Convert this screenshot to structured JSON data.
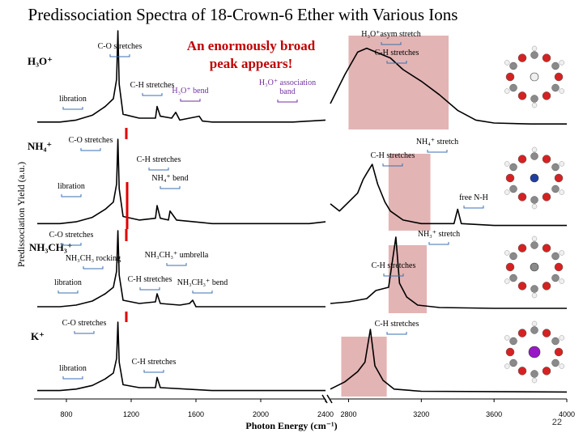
{
  "title": "Predissociation Spectra of 18-Crown-6 Ether with Various Ions",
  "page_number": "22",
  "callout": [
    "An enormously broad",
    "peak appears!"
  ],
  "colors": {
    "trace": "#000000",
    "highlight": "#e3b4b4",
    "bracket_blue": "#3b6fb0",
    "bracket_purple": "#7030a0",
    "break_marker": "#e00000",
    "callout_text": "#c00000",
    "atom_oxygen": "#d42222",
    "atom_carbon": "#8a8a8a",
    "atom_hydrogen": "#f0f0f0",
    "atom_nitrogen": "#1f3f9f",
    "atom_potassium": "#9a17c9"
  },
  "chart_data": {
    "type": "line",
    "xlabel": "Photon Energy (cm⁻¹)",
    "ylabel": "Predissociation Yield (a.u.)",
    "xlim": [
      600,
      4000
    ],
    "axis_break": [
      2400,
      2700
    ],
    "xticks": [
      800,
      1200,
      1600,
      2000,
      2400,
      2800,
      3200,
      3600,
      4000
    ],
    "grid": false,
    "legend": "none",
    "panels": [
      {
        "name": "H3O+",
        "ion_label": "H₃O⁺",
        "highlight_range": [
          2800,
          3350
        ],
        "annotations": [
          {
            "text": "C-O stretches",
            "x": 1120
          },
          {
            "text": "libration",
            "x": 920
          },
          {
            "text": "C-H stretches",
            "x": 1350
          },
          {
            "text": "H₃O⁺ bend",
            "x": 1640
          },
          {
            "text": "H₃O⁺ association band",
            "x": 2300
          },
          {
            "text": "H₃O⁺asym stretch",
            "x": 3030
          },
          {
            "text": "C-H stretches",
            "x": 3030
          }
        ],
        "points": [
          [
            620,
            0.06
          ],
          [
            760,
            0.06
          ],
          [
            860,
            0.08
          ],
          [
            960,
            0.13
          ],
          [
            1040,
            0.22
          ],
          [
            1090,
            0.3
          ],
          [
            1110,
            0.5
          ],
          [
            1118,
            1.0
          ],
          [
            1126,
            0.45
          ],
          [
            1150,
            0.14
          ],
          [
            1250,
            0.1
          ],
          [
            1350,
            0.1
          ],
          [
            1360,
            0.22
          ],
          [
            1380,
            0.12
          ],
          [
            1450,
            0.1
          ],
          [
            1475,
            0.16
          ],
          [
            1500,
            0.08
          ],
          [
            1620,
            0.12
          ],
          [
            1640,
            0.07
          ],
          [
            1700,
            0.06
          ],
          [
            2000,
            0.06
          ],
          [
            2200,
            0.06
          ],
          [
            2400,
            0.08
          ],
          [
            2700,
            0.25
          ],
          [
            2780,
            0.55
          ],
          [
            2850,
            0.78
          ],
          [
            2900,
            0.82
          ],
          [
            2950,
            0.78
          ],
          [
            3030,
            0.72
          ],
          [
            3100,
            0.6
          ],
          [
            3200,
            0.48
          ],
          [
            3300,
            0.34
          ],
          [
            3400,
            0.18
          ],
          [
            3500,
            0.08
          ],
          [
            3600,
            0.05
          ],
          [
            3800,
            0.04
          ],
          [
            4000,
            0.04
          ]
        ]
      },
      {
        "name": "NH4+",
        "ion_label": "NH₄⁺",
        "highlight_range": [
          3020,
          3250
        ],
        "annotations": [
          {
            "text": "C-O stretches",
            "x": 1120
          },
          {
            "text": "libration",
            "x": 920
          },
          {
            "text": "C-H stretches",
            "x": 1350
          },
          {
            "text": "NH₄⁺ bend",
            "x": 1440
          },
          {
            "text": "NH₄⁺ stretch",
            "x": 3030
          },
          {
            "text": "C-H stretches",
            "x": 2930
          },
          {
            "text": "free N-H",
            "x": 3380
          }
        ],
        "points": [
          [
            620,
            0.06
          ],
          [
            760,
            0.06
          ],
          [
            860,
            0.08
          ],
          [
            960,
            0.13
          ],
          [
            1040,
            0.22
          ],
          [
            1090,
            0.3
          ],
          [
            1110,
            0.5
          ],
          [
            1118,
            1.0
          ],
          [
            1126,
            0.45
          ],
          [
            1150,
            0.14
          ],
          [
            1250,
            0.1
          ],
          [
            1350,
            0.12
          ],
          [
            1360,
            0.26
          ],
          [
            1380,
            0.12
          ],
          [
            1430,
            0.1
          ],
          [
            1440,
            0.2
          ],
          [
            1460,
            0.15
          ],
          [
            1480,
            0.1
          ],
          [
            1700,
            0.06
          ],
          [
            2000,
            0.06
          ],
          [
            2300,
            0.06
          ],
          [
            2400,
            0.08
          ],
          [
            2700,
            0.28
          ],
          [
            2750,
            0.2
          ],
          [
            2800,
            0.3
          ],
          [
            2850,
            0.4
          ],
          [
            2880,
            0.55
          ],
          [
            2900,
            0.62
          ],
          [
            2930,
            0.72
          ],
          [
            2960,
            0.5
          ],
          [
            3000,
            0.3
          ],
          [
            3030,
            0.2
          ],
          [
            3100,
            0.1
          ],
          [
            3200,
            0.06
          ],
          [
            3380,
            0.06
          ],
          [
            3400,
            0.22
          ],
          [
            3420,
            0.06
          ],
          [
            3600,
            0.04
          ],
          [
            4000,
            0.04
          ]
        ]
      },
      {
        "name": "NH3CH3+",
        "ion_label": "NH₃CH₃⁺",
        "highlight_range": [
          3020,
          3230
        ],
        "annotations": [
          {
            "text": "C-O stretches",
            "x": 1120
          },
          {
            "text": "NH₃CH₃ rocking",
            "x": 920
          },
          {
            "text": "libration",
            "x": 920
          },
          {
            "text": "NH₃CH₃⁺ umbrella",
            "x": 1450
          },
          {
            "text": "C-H stretches",
            "x": 1350
          },
          {
            "text": "NH₃CH₃⁺ bend",
            "x": 1580
          },
          {
            "text": "NH₃⁺ stretch",
            "x": 3030
          },
          {
            "text": "C-H stretches",
            "x": 2930
          }
        ],
        "points": [
          [
            620,
            0.06
          ],
          [
            760,
            0.06
          ],
          [
            860,
            0.08
          ],
          [
            960,
            0.13
          ],
          [
            1040,
            0.22
          ],
          [
            1090,
            0.3
          ],
          [
            1110,
            0.5
          ],
          [
            1118,
            1.0
          ],
          [
            1126,
            0.45
          ],
          [
            1150,
            0.14
          ],
          [
            1250,
            0.1
          ],
          [
            1350,
            0.12
          ],
          [
            1360,
            0.22
          ],
          [
            1380,
            0.1
          ],
          [
            1500,
            0.08
          ],
          [
            1560,
            0.1
          ],
          [
            1580,
            0.14
          ],
          [
            1600,
            0.06
          ],
          [
            1700,
            0.06
          ],
          [
            2000,
            0.06
          ],
          [
            2400,
            0.06
          ],
          [
            2700,
            0.1
          ],
          [
            2800,
            0.12
          ],
          [
            2900,
            0.16
          ],
          [
            2950,
            0.26
          ],
          [
            3020,
            0.3
          ],
          [
            3060,
            0.92
          ],
          [
            3080,
            0.35
          ],
          [
            3120,
            0.18
          ],
          [
            3180,
            0.08
          ],
          [
            3300,
            0.05
          ],
          [
            3600,
            0.04
          ],
          [
            4000,
            0.04
          ]
        ]
      },
      {
        "name": "K+",
        "ion_label": "K⁺",
        "highlight_range": [
          2760,
          3010
        ],
        "annotations": [
          {
            "text": "C-O stretches",
            "x": 1120
          },
          {
            "text": "libration",
            "x": 920
          },
          {
            "text": "C-H stretches",
            "x": 1350
          },
          {
            "text": "C-H stretches",
            "x": 2930
          }
        ],
        "points": [
          [
            620,
            0.06
          ],
          [
            760,
            0.06
          ],
          [
            860,
            0.08
          ],
          [
            960,
            0.13
          ],
          [
            1040,
            0.22
          ],
          [
            1090,
            0.3
          ],
          [
            1110,
            0.5
          ],
          [
            1118,
            1.0
          ],
          [
            1126,
            0.45
          ],
          [
            1150,
            0.14
          ],
          [
            1250,
            0.1
          ],
          [
            1350,
            0.1
          ],
          [
            1360,
            0.24
          ],
          [
            1380,
            0.1
          ],
          [
            1700,
            0.06
          ],
          [
            2000,
            0.06
          ],
          [
            2400,
            0.06
          ],
          [
            2700,
            0.08
          ],
          [
            2780,
            0.18
          ],
          [
            2850,
            0.32
          ],
          [
            2890,
            0.45
          ],
          [
            2920,
            0.9
          ],
          [
            2945,
            0.4
          ],
          [
            2990,
            0.2
          ],
          [
            3050,
            0.08
          ],
          [
            3200,
            0.05
          ],
          [
            4000,
            0.04
          ]
        ]
      }
    ]
  }
}
